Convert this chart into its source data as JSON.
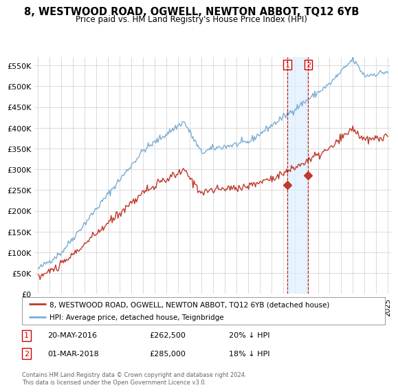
{
  "title": "8, WESTWOOD ROAD, OGWELL, NEWTON ABBOT, TQ12 6YB",
  "subtitle": "Price paid vs. HM Land Registry's House Price Index (HPI)",
  "ylabel_ticks": [
    "£0",
    "£50K",
    "£100K",
    "£150K",
    "£200K",
    "£250K",
    "£300K",
    "£350K",
    "£400K",
    "£450K",
    "£500K",
    "£550K"
  ],
  "ytick_values": [
    0,
    50000,
    100000,
    150000,
    200000,
    250000,
    300000,
    350000,
    400000,
    450000,
    500000,
    550000
  ],
  "ylim": [
    0,
    570000
  ],
  "purchase1": {
    "date": "20-MAY-2016",
    "price": 262500,
    "year": 2016.38,
    "label": "1",
    "pct": "20% ↓ HPI"
  },
  "purchase2": {
    "date": "01-MAR-2018",
    "price": 285000,
    "year": 2018.17,
    "label": "2",
    "pct": "18% ↓ HPI"
  },
  "legend_line1": "8, WESTWOOD ROAD, OGWELL, NEWTON ABBOT, TQ12 6YB (detached house)",
  "legend_line2": "HPI: Average price, detached house, Teignbridge",
  "footer": "Contains HM Land Registry data © Crown copyright and database right 2024.\nThis data is licensed under the Open Government Licence v3.0.",
  "hpi_color": "#7aadd4",
  "price_color": "#c0392b",
  "vline_color": "#cc0000",
  "shade_color": "#ddeeff",
  "background_color": "#ffffff",
  "grid_color": "#cccccc"
}
